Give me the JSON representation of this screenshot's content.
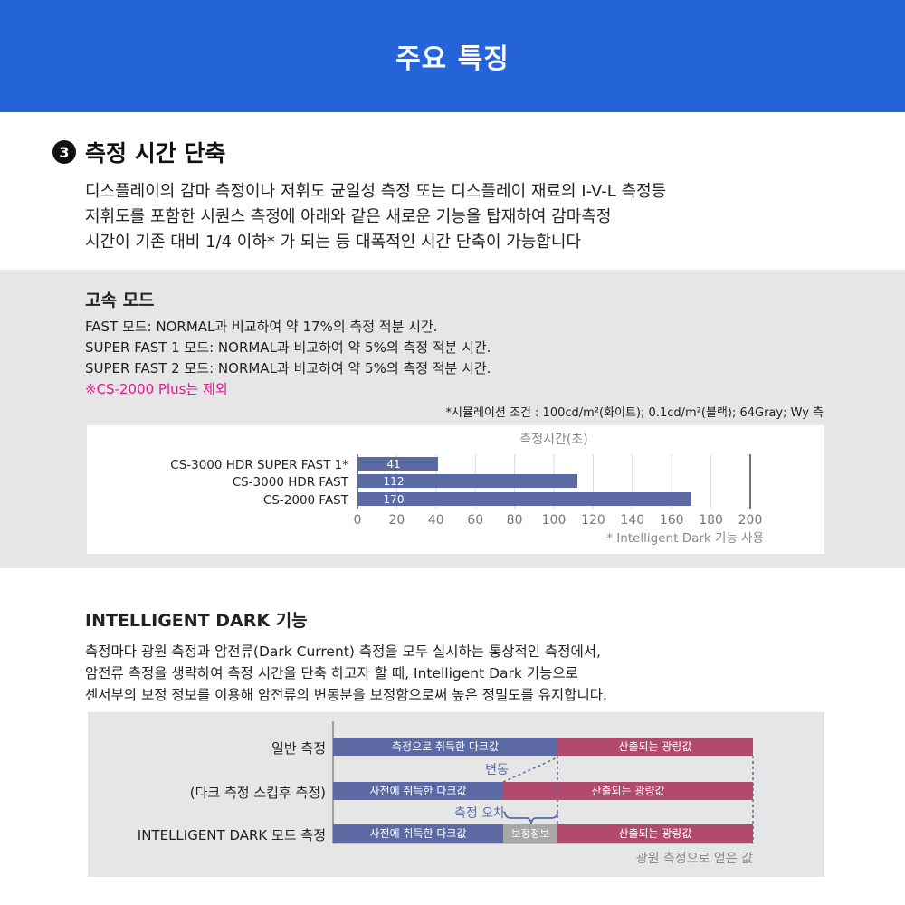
{
  "header": {
    "title": "주요 특징"
  },
  "section": {
    "number": "3",
    "title": "측정 시간 단축",
    "intro": [
      "디스플레이의 감마 측정이나 저휘도 균일성 측정 또는 디스플레이 재료의 I-V-L 측정등",
      "저휘도를 포함한 시퀀스 측정에 아래와 같은 새로운 기능을 탑재하여 감마측정",
      "시간이 기존 대비 1/4 이하* 가 되는 등 대폭적인 시간 단축이 가능합니다"
    ]
  },
  "fast_mode": {
    "title": "고속 모드",
    "lines": [
      "FAST 모드: NORMAL과 비교하여 약 17%의 측정 적분 시간.",
      "SUPER FAST 1 모드: NORMAL과 비교하여 약 5%의 측정 적분 시간.",
      "SUPER FAST 2 모드: NORMAL과 비교하여 약 5%의 측정 적분 시간."
    ],
    "note": "※CS-2000 Plus는 제외",
    "condition": "*시뮬레이션 조건 : 100cd/m²(화이트); 0.1cd/m²(블랙); 64Gray; Wy 측"
  },
  "chart_data": {
    "type": "bar",
    "orientation": "horizontal",
    "title": "측정시간(초)",
    "categories": [
      "CS-3000 HDR SUPER FAST 1*",
      "CS-3000 HDR FAST",
      "CS-2000 FAST"
    ],
    "values": [
      41,
      112,
      170
    ],
    "xlim": [
      0,
      200
    ],
    "xticks": [
      "0",
      "20",
      "40",
      "60",
      "80",
      "100",
      "120",
      "140",
      "160",
      "180",
      "200"
    ],
    "grid": true,
    "bar_color": "#5b6aa5",
    "footnote": "* Intelligent Dark 기능 사용"
  },
  "intelligent_dark": {
    "title": "INTELLIGENT DARK 기능",
    "desc": [
      "측정마다 광원 측정과 암전류(Dark Current) 측정을 모두 실시하는 통상적인 측정에서,",
      "암전류 측정을 생략하여 측정 시간을 단축 하고자 할 때, Intelligent Dark 기능으로",
      "센서부의 보정 정보를 이용해 암전류의 변동분을 보정함으로써 높은 정밀도를 유지합니다."
    ]
  },
  "diagram": {
    "rows": [
      {
        "label": "일반 측정",
        "dark": "측정으로 취득한 다크값",
        "light": "산출되는 광량값"
      },
      {
        "label": "(다크 측정 스킵후 측정)",
        "dark": "사전에 취득한 다크값",
        "light": "산출되는 광량값"
      },
      {
        "label": "INTELLIGENT DARK 모드 측정",
        "dark": "사전에 취득한 다크값",
        "correction": "보정정보",
        "light": "산출되는 광량값"
      }
    ],
    "change_label": "변동",
    "error_label": "측정 오차",
    "bottom_label": "광원 측정으로 얻은 값",
    "colors": {
      "dark": "#5b6aa5",
      "light": "#b24a6f",
      "correction": "#a8a8a8"
    }
  }
}
